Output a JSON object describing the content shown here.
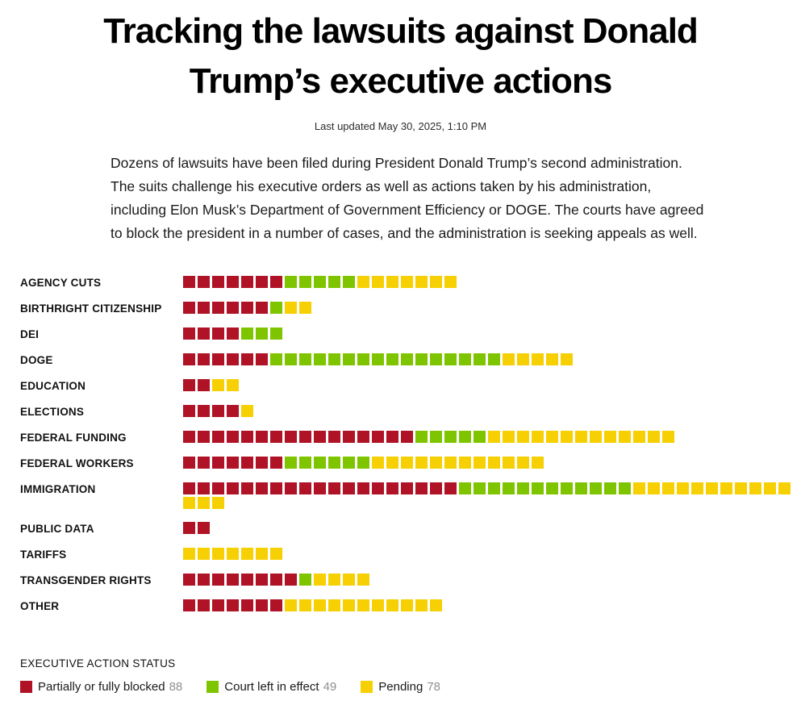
{
  "header": {
    "title": "Tracking the lawsuits against Donald Trump’s executive actions",
    "last_updated": "Last updated May 30, 2025, 1:10 PM",
    "intro": "Dozens of lawsuits have been filed during President Donald Trump’s second administration. The suits challenge his executive orders as well as actions taken by his administration, including Elon Musk’s Department of Government Efficiency or DOGE. The courts have agreed to block the president in a number of cases, and the administration is seeking appeals as well."
  },
  "colors": {
    "blocked": "#b01226",
    "effect": "#7ec500",
    "pending": "#f6d002"
  },
  "chart_data": {
    "type": "bar",
    "variant": "unit-square-stacked-rows",
    "title": "Tracking the lawsuits against Donald Trump’s executive actions",
    "categories": [
      "AGENCY CUTS",
      "BIRTHRIGHT CITIZENSHIP",
      "DEI",
      "DOGE",
      "EDUCATION",
      "ELECTIONS",
      "FEDERAL FUNDING",
      "FEDERAL WORKERS",
      "IMMIGRATION",
      "PUBLIC DATA",
      "TARIFFS",
      "TRANSGENDER RIGHTS",
      "OTHER"
    ],
    "series": [
      {
        "name": "Partially or fully blocked",
        "key": "blocked",
        "color": "#b01226",
        "values": [
          7,
          6,
          4,
          6,
          2,
          4,
          16,
          7,
          19,
          2,
          0,
          8,
          7
        ],
        "total": 88
      },
      {
        "name": "Court left in effect",
        "key": "effect",
        "color": "#7ec500",
        "values": [
          5,
          1,
          3,
          16,
          0,
          0,
          5,
          6,
          12,
          0,
          0,
          1,
          0
        ],
        "total": 49
      },
      {
        "name": "Pending",
        "key": "pending",
        "color": "#f6d002",
        "values": [
          7,
          2,
          0,
          5,
          2,
          1,
          13,
          12,
          14,
          0,
          7,
          4,
          11
        ],
        "total": 78
      }
    ],
    "legend_position": "bottom",
    "grid": false
  },
  "legend": {
    "title": "EXECUTIVE ACTION STATUS",
    "items": [
      {
        "label": "Partially or fully blocked",
        "count": "88",
        "key": "blocked",
        "color": "#b01226"
      },
      {
        "label": "Court left in effect",
        "count": "49",
        "key": "effect",
        "color": "#7ec500"
      },
      {
        "label": "Pending",
        "count": "78",
        "key": "pending",
        "color": "#f6d002"
      }
    ]
  }
}
